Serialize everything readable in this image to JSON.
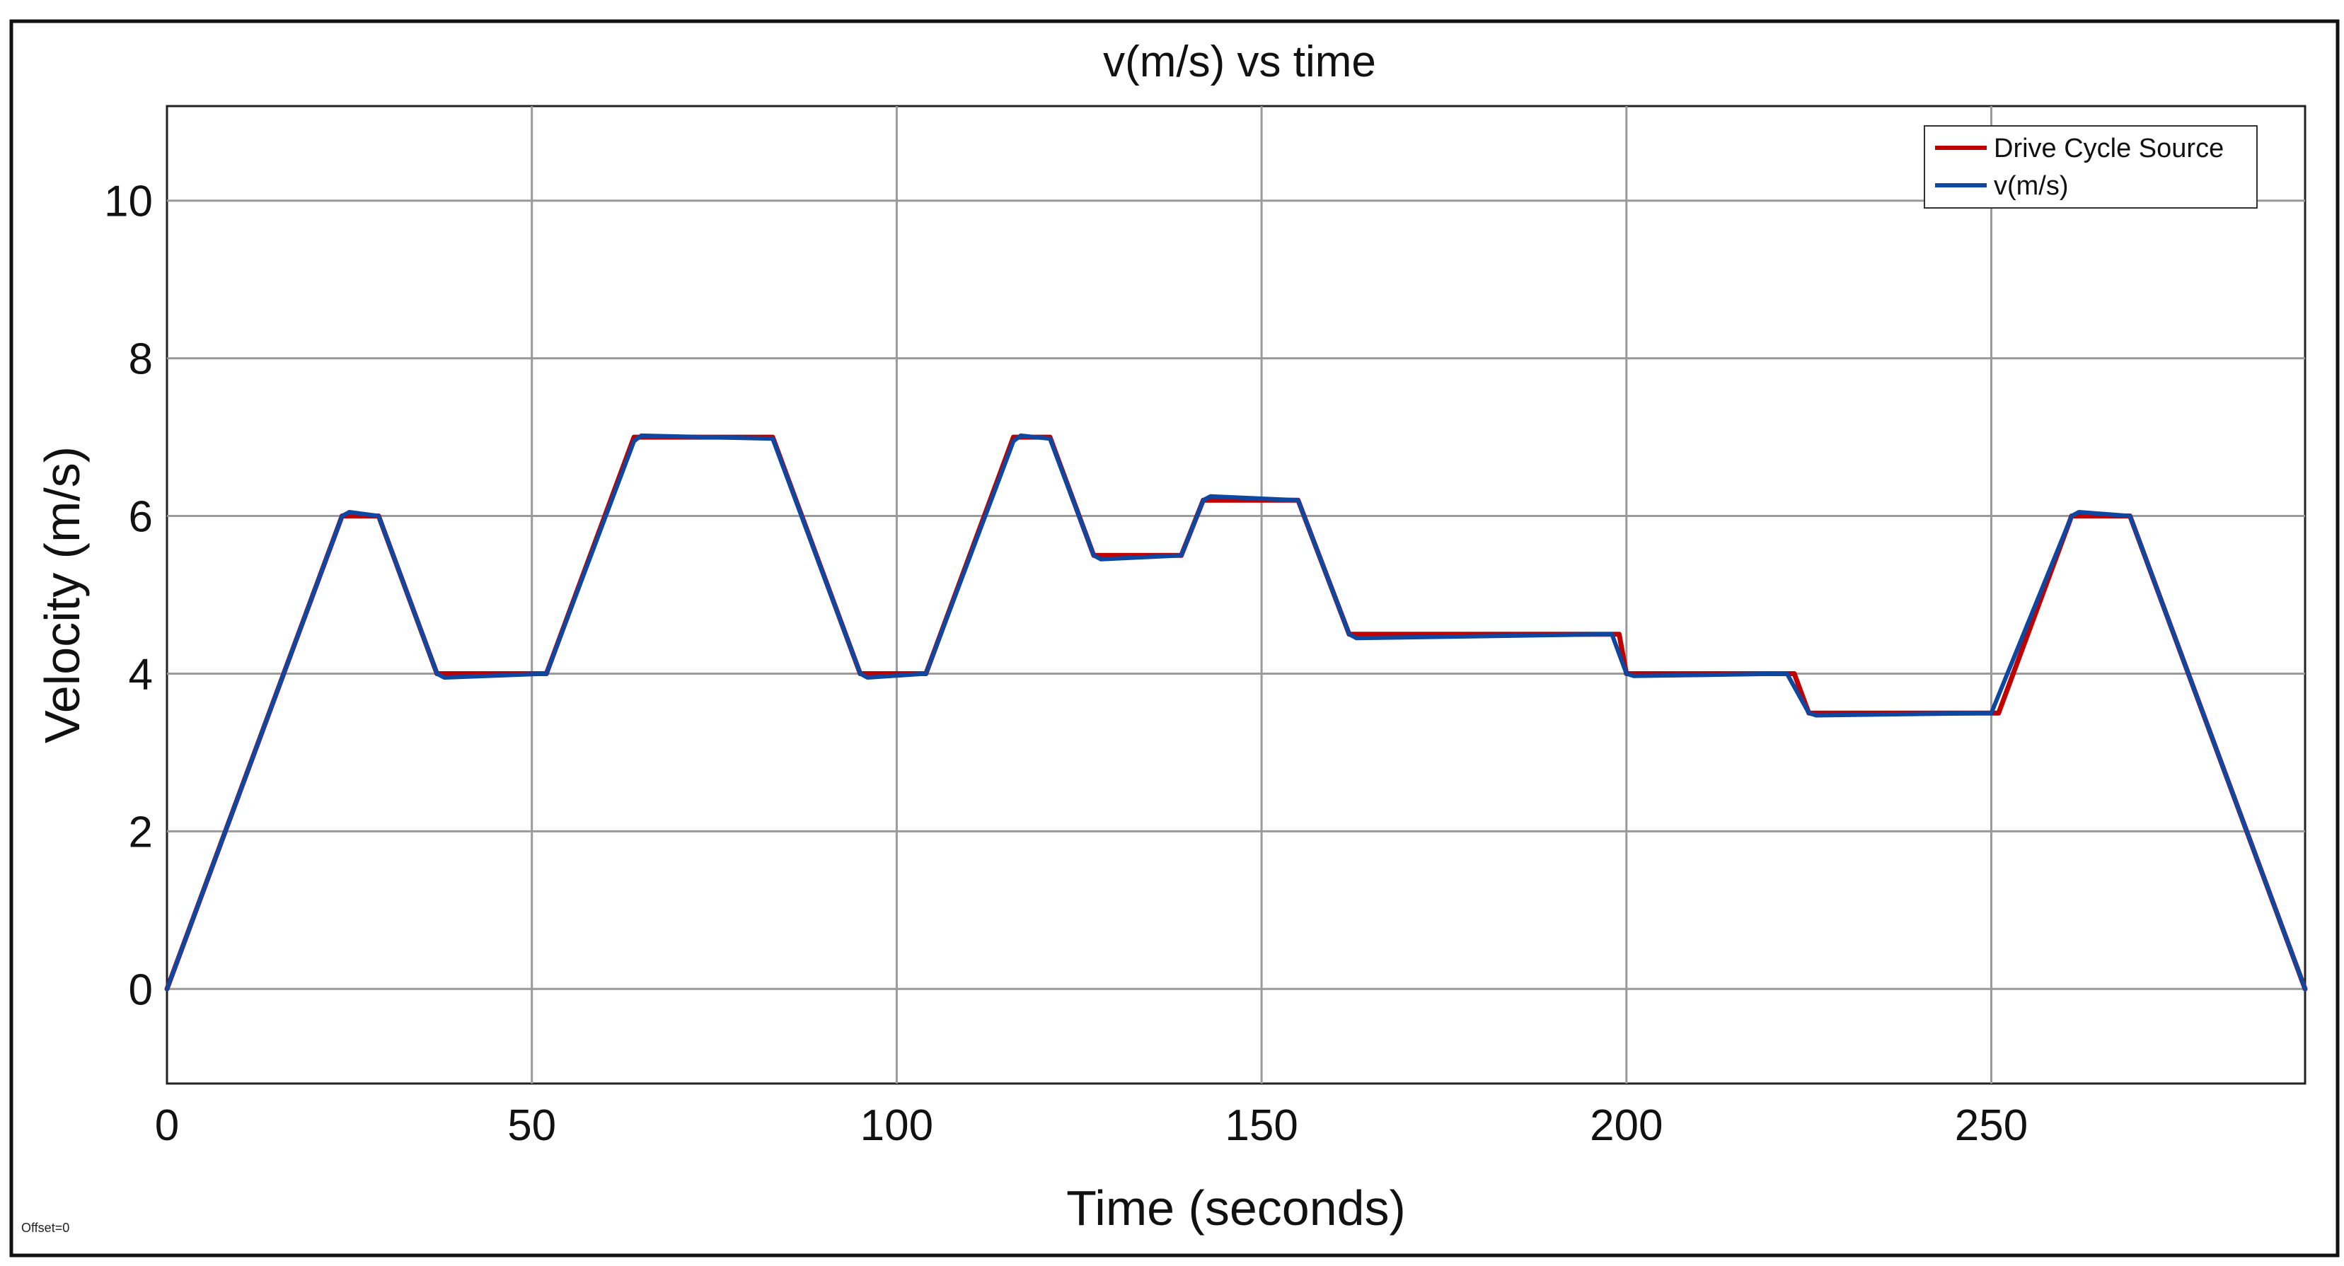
{
  "offset_label": "Offset=0",
  "chart_data": {
    "type": "line",
    "title": "v(m/s) vs time",
    "xlabel": "Time (seconds)",
    "ylabel": "Velocity (m/s)",
    "xlim": [
      0,
      293
    ],
    "ylim": [
      -1.2,
      11.2
    ],
    "xticks": [
      0,
      50,
      100,
      150,
      200,
      250
    ],
    "yticks": [
      0,
      2,
      4,
      6,
      8,
      10
    ],
    "grid": true,
    "legend_position": "top-right",
    "series": [
      {
        "name": "Drive Cycle Source",
        "color": "#c00000",
        "x": [
          0,
          24,
          29,
          37,
          52,
          64,
          83,
          95,
          104,
          116,
          121,
          127,
          139,
          142,
          155,
          162,
          199,
          200,
          223,
          225,
          251,
          261,
          269,
          293
        ],
        "y": [
          0,
          6,
          6,
          4,
          4,
          7,
          7,
          4,
          4,
          7,
          7,
          5.5,
          5.5,
          6.2,
          6.2,
          4.5,
          4.5,
          4,
          4,
          3.5,
          3.5,
          6,
          6,
          0
        ]
      },
      {
        "name": "v(m/s)",
        "color": "#0d47a1",
        "x": [
          0,
          24,
          25,
          29,
          37,
          38,
          52,
          64,
          65,
          83,
          95,
          96,
          104,
          116,
          117,
          121,
          127,
          128,
          139,
          142,
          143,
          155,
          162,
          163,
          198,
          200,
          201,
          222,
          225,
          226,
          250,
          261,
          262,
          269,
          293
        ],
        "y": [
          0,
          6,
          6.05,
          6,
          4,
          3.95,
          4,
          6.95,
          7.02,
          6.98,
          4,
          3.95,
          4,
          6.95,
          7.02,
          6.98,
          5.5,
          5.45,
          5.5,
          6.2,
          6.25,
          6.2,
          4.5,
          4.45,
          4.5,
          4,
          3.97,
          4,
          3.5,
          3.47,
          3.5,
          6,
          6.05,
          6,
          0
        ]
      }
    ]
  }
}
